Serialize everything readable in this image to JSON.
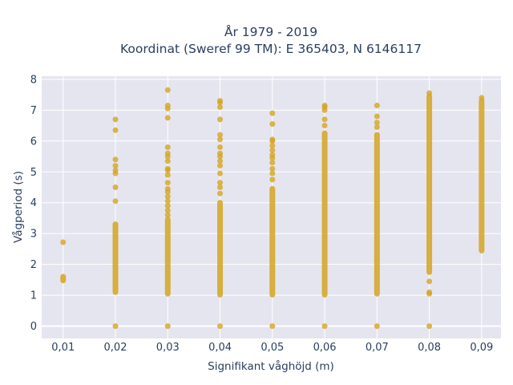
{
  "title_line1": "År 1979 - 2019",
  "title_line2": "Koordinat (Sweref 99 TM): E 365403, N 6146117",
  "chart_data": {
    "type": "scatter",
    "xlabel": "Signifikant våghöjd (m)",
    "ylabel": "Vågperiod (s)",
    "x_ticks": [
      "0,01",
      "0,02",
      "0,03",
      "0,04",
      "0,05",
      "0,06",
      "0,07",
      "0,08",
      "0,09"
    ],
    "x_values": [
      0.01,
      0.02,
      0.03,
      0.04,
      0.05,
      0.06,
      0.07,
      0.08,
      0.09
    ],
    "y_ticks": [
      "0",
      "1",
      "2",
      "3",
      "4",
      "5",
      "6",
      "7",
      "8"
    ],
    "xlim": [
      0.0059,
      0.0937
    ],
    "ylim": [
      -0.4,
      8.1
    ],
    "grid": true,
    "marker_color": "#D4A520",
    "plot_background": "#E5E5F0",
    "columns": [
      {
        "x": 0.01,
        "band": [
          1.48,
          1.6
        ],
        "extra": [
          2.72
        ]
      },
      {
        "x": 0.02,
        "band": [
          1.1,
          3.3
        ],
        "extra": [
          0,
          4.05,
          4.5,
          4.95,
          5.05,
          5.2,
          5.4,
          6.35,
          6.7
        ]
      },
      {
        "x": 0.03,
        "band": [
          1.05,
          3.45
        ],
        "extra": [
          0,
          3.6,
          3.75,
          3.9,
          4.05,
          4.2,
          4.35,
          4.45,
          4.65,
          4.9,
          5.05,
          5.1,
          5.35,
          5.5,
          5.6,
          5.8,
          6.75,
          7.05,
          7.15,
          7.65
        ]
      },
      {
        "x": 0.04,
        "band": [
          1.02,
          4.0
        ],
        "extra": [
          0,
          4.3,
          4.5,
          4.65,
          4.95,
          5.2,
          5.35,
          5.5,
          5.6,
          5.8,
          6.05,
          6.2,
          6.7,
          7.1,
          7.25,
          7.3
        ]
      },
      {
        "x": 0.05,
        "band": [
          1.02,
          4.45
        ],
        "extra": [
          0,
          4.75,
          4.95,
          5.1,
          5.3,
          5.45,
          5.55,
          5.7,
          5.85,
          6.0,
          6.05,
          6.55,
          6.9
        ]
      },
      {
        "x": 0.06,
        "band": [
          1.02,
          6.25
        ],
        "extra": [
          0,
          6.5,
          6.7,
          7.0,
          7.1,
          7.15
        ]
      },
      {
        "x": 0.07,
        "band": [
          1.05,
          6.2
        ],
        "extra": [
          0,
          6.45,
          6.6,
          6.8,
          7.15
        ]
      },
      {
        "x": 0.08,
        "band": [
          1.75,
          7.45
        ],
        "extra": [
          0,
          1.05,
          1.1,
          1.45,
          7.55
        ]
      },
      {
        "x": 0.09,
        "band": [
          2.45,
          7.3
        ],
        "extra": [
          7.4
        ]
      }
    ]
  }
}
